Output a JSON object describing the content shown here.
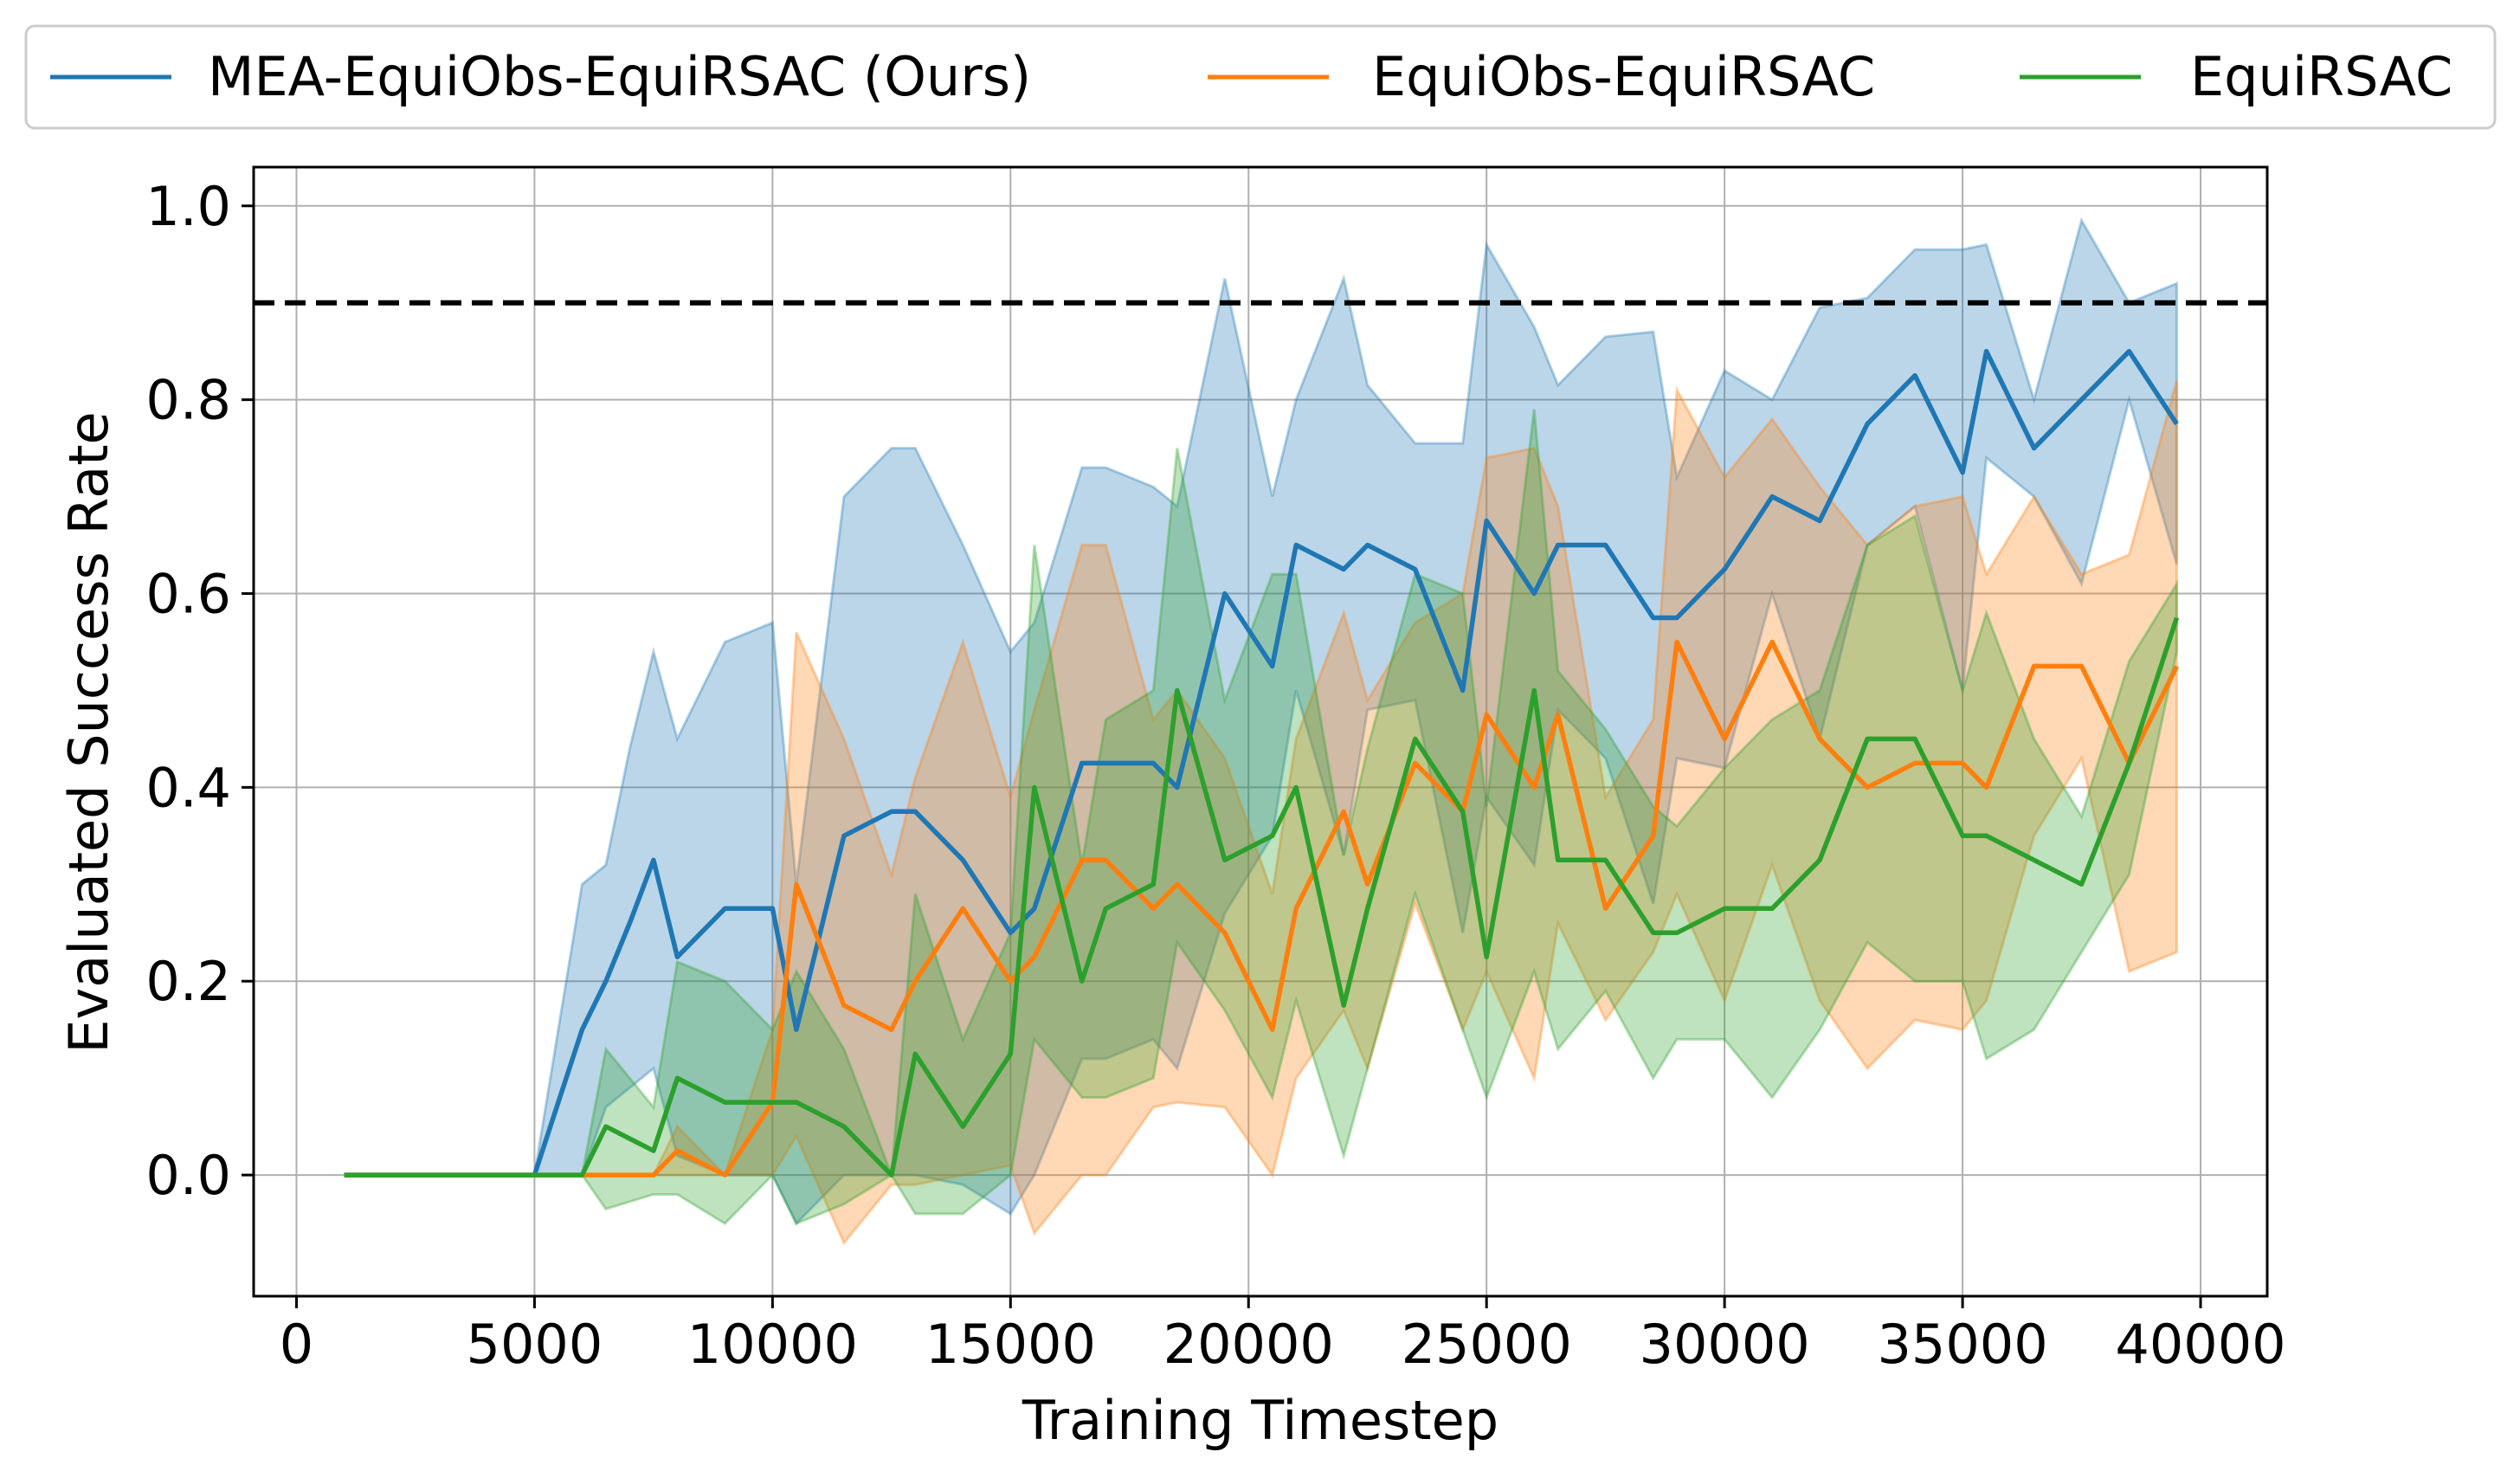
{
  "chart_data": {
    "type": "line",
    "xlabel": "Training Timestep",
    "ylabel": "Evaluated Success Rate",
    "xlim": [
      -900,
      41400
    ],
    "ylim": [
      -0.125,
      1.04
    ],
    "xticks": [
      0,
      5000,
      10000,
      15000,
      20000,
      25000,
      30000,
      35000,
      40000
    ],
    "xtick_labels": [
      "0",
      "5000",
      "10000",
      "15000",
      "20000",
      "25000",
      "30000",
      "35000",
      "40000"
    ],
    "yticks": [
      0.0,
      0.2,
      0.4,
      0.6,
      0.8,
      1.0
    ],
    "ytick_labels": [
      "0.0",
      "0.2",
      "0.4",
      "0.6",
      "0.8",
      "1.0"
    ],
    "grid": true,
    "legend_position": "top, above plot",
    "reference_line": {
      "y": 0.9,
      "style": "dashed",
      "color": "#000000"
    },
    "series": [
      {
        "name": "MEA-EquiObs-EquiRSAC (Ours)",
        "color": "#1f77b4",
        "x": [
          1000,
          1500,
          2000,
          2500,
          3000,
          3500,
          4000,
          4500,
          5000,
          5500,
          6000,
          6500,
          7000,
          7500,
          8000,
          9000,
          10000,
          10500,
          11500,
          12500,
          13000,
          14000,
          15000,
          15500,
          16500,
          17000,
          18000,
          18500,
          19500,
          20500,
          21000,
          22000,
          22500,
          23500,
          24500,
          25000,
          26000,
          26500,
          27500,
          28500,
          29000,
          30000,
          31000,
          32000,
          33000,
          34000,
          35000,
          35500,
          36500,
          37500,
          38500,
          39500
        ],
        "y": [
          0,
          0,
          0,
          0,
          0,
          0,
          0,
          0,
          0,
          0.075,
          0.15,
          0.2,
          0.26,
          0.325,
          0.225,
          0.275,
          0.275,
          0.15,
          0.35,
          0.375,
          0.375,
          0.325,
          0.25,
          0.275,
          0.425,
          0.425,
          0.425,
          0.4,
          0.6,
          0.525,
          0.65,
          0.625,
          0.65,
          0.625,
          0.5,
          0.675,
          0.6,
          0.65,
          0.65,
          0.575,
          0.575,
          0.625,
          0.7,
          0.675,
          0.775,
          0.825,
          0.725,
          0.85,
          0.75,
          0.8,
          0.85,
          0.775
        ],
        "upper": [
          0,
          0,
          0,
          0,
          0,
          0,
          0,
          0,
          0,
          0.15,
          0.3,
          0.32,
          0.44,
          0.54,
          0.45,
          0.55,
          0.57,
          0.3,
          0.7,
          0.75,
          0.75,
          0.65,
          0.54,
          0.57,
          0.73,
          0.73,
          0.71,
          0.69,
          0.925,
          0.7,
          0.8,
          0.925,
          0.815,
          0.755,
          0.755,
          0.96,
          0.875,
          0.815,
          0.865,
          0.87,
          0.72,
          0.83,
          0.8,
          0.895,
          0.905,
          0.955,
          0.955,
          0.96,
          0.8,
          0.985,
          0.9,
          0.92
        ],
        "lower": [
          0,
          0,
          0,
          0,
          0,
          0,
          0,
          0,
          0,
          0,
          0,
          0.07,
          0.09,
          0.11,
          0.02,
          0,
          0,
          -0.05,
          0,
          0,
          0,
          -0.01,
          -0.04,
          0,
          0.12,
          0.12,
          0.14,
          0.11,
          0.27,
          0.35,
          0.5,
          0.33,
          0.48,
          0.49,
          0.25,
          0.39,
          0.32,
          0.48,
          0.43,
          0.28,
          0.43,
          0.42,
          0.6,
          0.45,
          0.65,
          0.69,
          0.5,
          0.74,
          0.7,
          0.61,
          0.8,
          0.63
        ]
      },
      {
        "name": "EquiObs-EquiRSAC",
        "color": "#ff7f0e",
        "x": [
          1000,
          2000,
          3000,
          4000,
          5000,
          6000,
          6500,
          7500,
          8000,
          9000,
          10000,
          10500,
          11500,
          12500,
          13000,
          14000,
          15000,
          15500,
          16500,
          17000,
          18000,
          18500,
          19500,
          20500,
          21000,
          22000,
          22500,
          23500,
          24500,
          25000,
          26000,
          26500,
          27500,
          28500,
          29000,
          30000,
          31000,
          32000,
          33000,
          34000,
          35000,
          35500,
          36500,
          37500,
          38500,
          39500
        ],
        "y": [
          0,
          0,
          0,
          0,
          0,
          0,
          0,
          0,
          0.025,
          0,
          0.075,
          0.3,
          0.175,
          0.15,
          0.2,
          0.275,
          0.2,
          0.225,
          0.325,
          0.325,
          0.275,
          0.3,
          0.25,
          0.15,
          0.275,
          0.375,
          0.3,
          0.425,
          0.375,
          0.475,
          0.4,
          0.475,
          0.275,
          0.35,
          0.55,
          0.45,
          0.55,
          0.45,
          0.4,
          0.425,
          0.425,
          0.4,
          0.525,
          0.525,
          0.425,
          0.525
        ],
        "upper": [
          0,
          0,
          0,
          0,
          0,
          0,
          0,
          0,
          0.05,
          0,
          0.15,
          0.56,
          0.45,
          0.31,
          0.41,
          0.55,
          0.39,
          0.48,
          0.65,
          0.65,
          0.47,
          0.5,
          0.43,
          0.29,
          0.45,
          0.58,
          0.49,
          0.57,
          0.6,
          0.74,
          0.75,
          0.69,
          0.39,
          0.47,
          0.81,
          0.72,
          0.78,
          0.71,
          0.65,
          0.69,
          0.7,
          0.62,
          0.7,
          0.62,
          0.64,
          0.82
        ],
        "lower": [
          0,
          0,
          0,
          0,
          0,
          0,
          0,
          0,
          0,
          0,
          0,
          0.04,
          -0.07,
          -0.01,
          -0.01,
          0,
          0.01,
          -0.06,
          0,
          0,
          0.07,
          0.075,
          0.07,
          0,
          0.1,
          0.17,
          0.11,
          0.28,
          0.15,
          0.21,
          0.1,
          0.26,
          0.16,
          0.23,
          0.29,
          0.18,
          0.32,
          0.18,
          0.11,
          0.16,
          0.15,
          0.18,
          0.35,
          0.43,
          0.21,
          0.23
        ]
      },
      {
        "name": "EquiRSAC",
        "color": "#2ca02c",
        "x": [
          1000,
          2000,
          3000,
          4000,
          5000,
          6000,
          6500,
          7500,
          8000,
          9000,
          10000,
          10500,
          11500,
          12500,
          13000,
          14000,
          15000,
          15500,
          16500,
          17000,
          18000,
          18500,
          19500,
          20500,
          21000,
          22000,
          22500,
          23500,
          24500,
          25000,
          26000,
          26500,
          27500,
          28500,
          29000,
          30000,
          31000,
          32000,
          33000,
          34000,
          35000,
          35500,
          36500,
          37500,
          38500,
          39500
        ],
        "y": [
          0,
          0,
          0,
          0,
          0,
          0,
          0.05,
          0.025,
          0.1,
          0.075,
          0.075,
          0.075,
          0.05,
          0,
          0.125,
          0.05,
          0.125,
          0.4,
          0.2,
          0.275,
          0.3,
          0.5,
          0.325,
          0.35,
          0.4,
          0.175,
          0.275,
          0.45,
          0.375,
          0.225,
          0.5,
          0.325,
          0.325,
          0.25,
          0.25,
          0.275,
          0.275,
          0.325,
          0.45,
          0.45,
          0.35,
          0.35,
          0.325,
          0.3,
          0.425,
          0.575
        ],
        "upper": [
          0,
          0,
          0,
          0,
          0,
          0,
          0.13,
          0.07,
          0.22,
          0.2,
          0.15,
          0.21,
          0.13,
          0,
          0.29,
          0.14,
          0.25,
          0.65,
          0.32,
          0.47,
          0.5,
          0.75,
          0.49,
          0.62,
          0.62,
          0.33,
          0.44,
          0.62,
          0.6,
          0.38,
          0.79,
          0.52,
          0.46,
          0.38,
          0.36,
          0.42,
          0.47,
          0.5,
          0.65,
          0.68,
          0.5,
          0.58,
          0.45,
          0.37,
          0.53,
          0.61
        ],
        "lower": [
          0,
          0,
          0,
          0,
          0,
          0,
          -0.035,
          -0.02,
          -0.02,
          -0.05,
          0,
          -0.05,
          -0.03,
          0,
          -0.04,
          -0.04,
          0,
          0.14,
          0.08,
          0.08,
          0.1,
          0.24,
          0.17,
          0.08,
          0.18,
          0.02,
          0.11,
          0.29,
          0.15,
          0.08,
          0.21,
          0.13,
          0.19,
          0.1,
          0.14,
          0.14,
          0.08,
          0.15,
          0.24,
          0.2,
          0.2,
          0.12,
          0.15,
          0.23,
          0.31,
          0.54
        ]
      }
    ]
  }
}
